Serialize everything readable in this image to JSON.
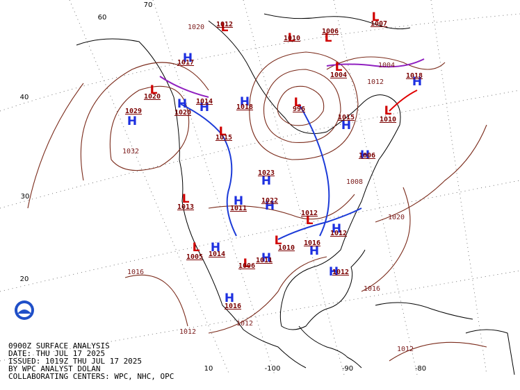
{
  "info": {
    "lines": [
      "0900Z SURFACE ANALYSIS",
      "DATE: THU JUL 17 2025",
      "ISSUED: 1019Z THU JUL 17 2025",
      "BY WPC ANALYST DOLAN",
      "COLLABORATING CENTERS: WPC, NHC, OPC"
    ]
  },
  "grid": {
    "lat_labels": [
      "70",
      "60",
      "40",
      "30",
      "20",
      "10"
    ],
    "lon_labels": [
      "-100",
      "-90",
      "-80"
    ]
  },
  "centers": [
    {
      "type": "H",
      "pressure": "1029"
    },
    {
      "type": "H",
      "pressure": "1020"
    },
    {
      "type": "H",
      "pressure": "1016"
    },
    {
      "type": "H",
      "pressure": "1022"
    },
    {
      "type": "H",
      "pressure": "1023"
    },
    {
      "type": "L",
      "pressure": "1010"
    },
    {
      "type": "H",
      "pressure": "1018"
    },
    {
      "type": "L",
      "pressure": "1007"
    },
    {
      "type": "L",
      "pressure": "1004"
    },
    {
      "type": "L",
      "pressure": "996"
    },
    {
      "type": "H",
      "pressure": "1015"
    },
    {
      "type": "L",
      "pressure": "1010"
    },
    {
      "type": "H",
      "pressure": "1006"
    },
    {
      "type": "L",
      "pressure": "1012"
    },
    {
      "type": "H",
      "pressure": "1018"
    },
    {
      "type": "H",
      "pressure": "1014"
    },
    {
      "type": "L",
      "pressure": "1015"
    },
    {
      "type": "H",
      "pressure": "1011"
    },
    {
      "type": "H",
      "pressure": "1016"
    },
    {
      "type": "H",
      "pressure": "1012"
    },
    {
      "type": "L",
      "pressure": "1005"
    },
    {
      "type": "H",
      "pressure": "1014"
    },
    {
      "type": "H",
      "pressure": "1011"
    },
    {
      "type": "L",
      "pressure": "1006"
    },
    {
      "type": "H",
      "pressure": "1012"
    },
    {
      "type": "L",
      "pressure": "1013"
    },
    {
      "type": "L",
      "pressure": "1020"
    },
    {
      "type": "H",
      "pressure": "1017"
    },
    {
      "type": "L",
      "pressure": "1012"
    },
    {
      "type": "L",
      "pressure": "1010"
    },
    {
      "type": "L",
      "pressure": "1006"
    }
  ],
  "isobar_labels": [
    "1020",
    "1032",
    "1016",
    "1012",
    "1012",
    "1020",
    "1016",
    "1012",
    "1012",
    "1004",
    "1008"
  ]
}
